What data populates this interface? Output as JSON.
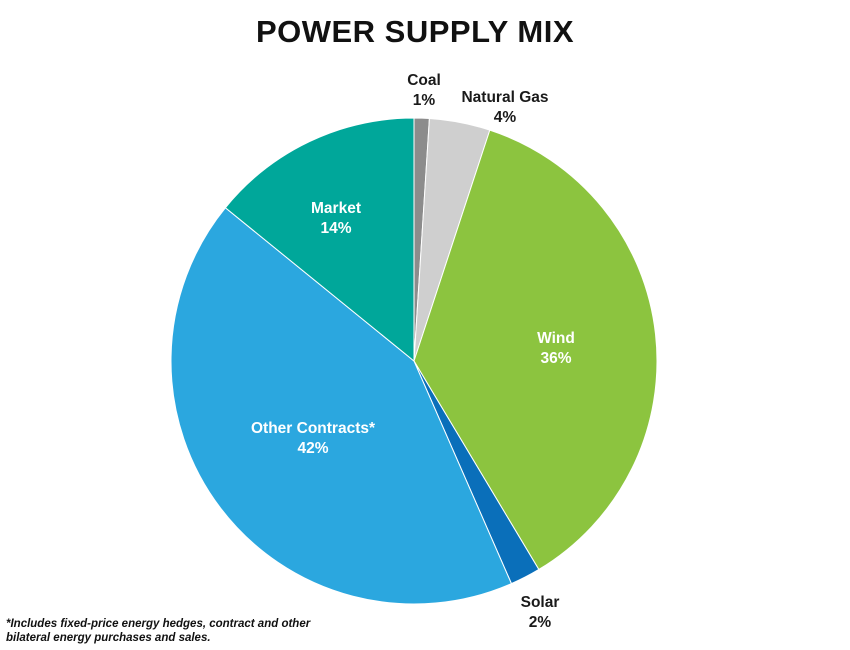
{
  "chart_data": {
    "type": "pie",
    "title": "POWER SUPPLY MIX",
    "slices": [
      {
        "label": "Coal",
        "value": 1,
        "value_label": "1%",
        "color": "#8c8c8c",
        "label_position": "outside"
      },
      {
        "label": "Natural Gas",
        "value": 4,
        "value_label": "4%",
        "color": "#cfcfcf",
        "label_position": "outside"
      },
      {
        "label": "Wind",
        "value": 36,
        "value_label": "36%",
        "color": "#8cc43f",
        "label_position": "inside"
      },
      {
        "label": "Solar",
        "value": 2,
        "value_label": "2%",
        "color": "#0a6fba",
        "label_position": "outside"
      },
      {
        "label": "Other Contracts*",
        "value": 42,
        "value_label": "42%",
        "color": "#2ba7df",
        "label_position": "inside"
      },
      {
        "label": "Market",
        "value": 14,
        "value_label": "14%",
        "color": "#00a79a",
        "label_position": "inside"
      }
    ],
    "legend": "none",
    "start_angle": "12 o'clock",
    "direction": "clockwise"
  },
  "footnote": "*Includes fixed-price energy hedges, contract and other bilateral energy purchases and sales."
}
